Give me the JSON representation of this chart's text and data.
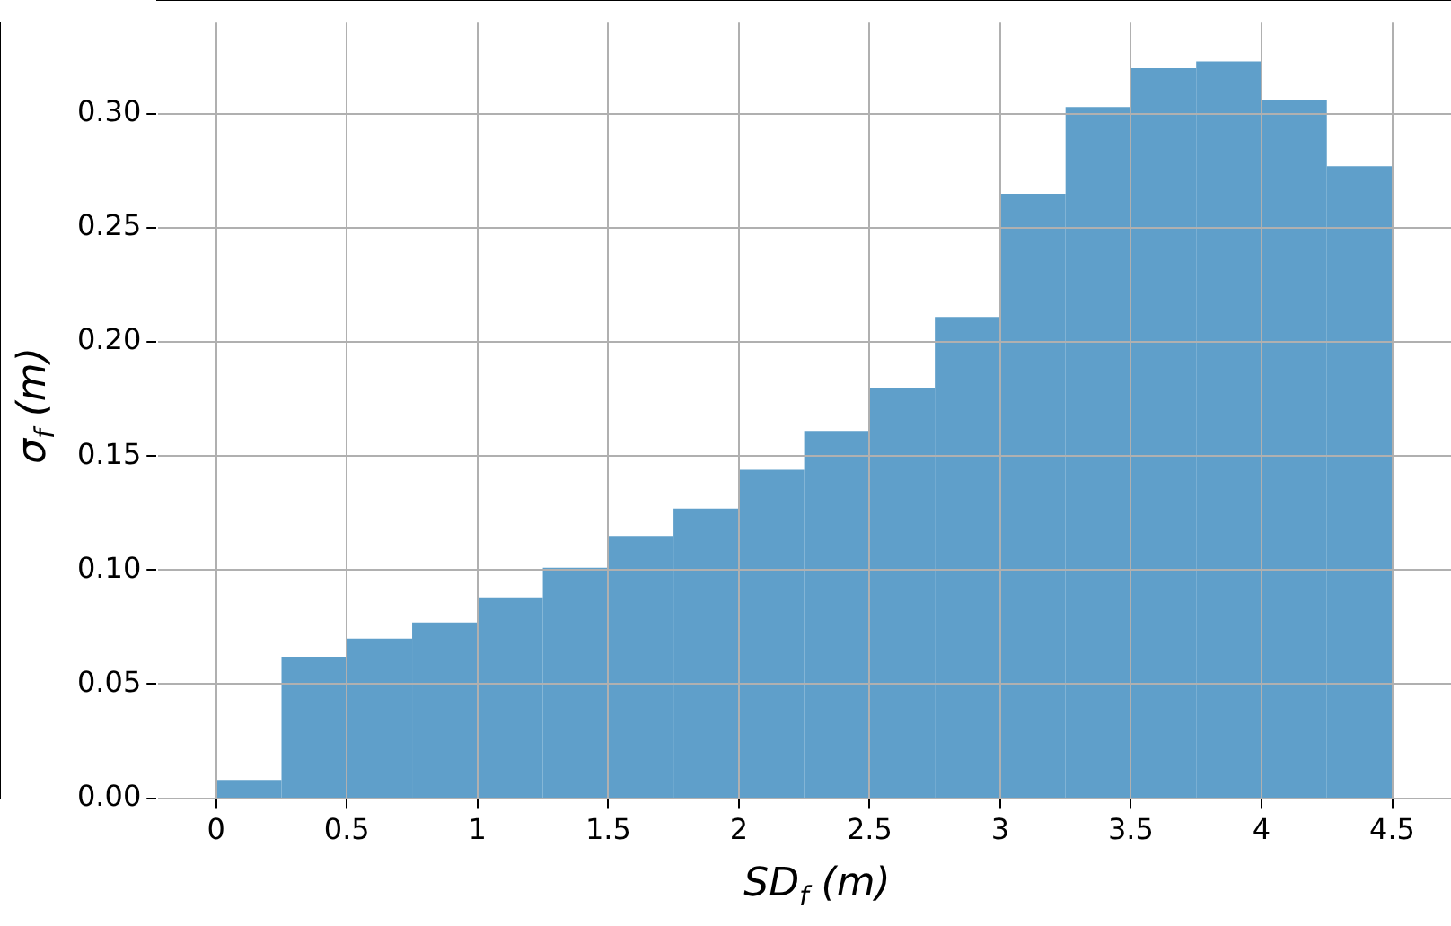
{
  "chart_data": {
    "type": "histogram",
    "xlabel": "SD$_{f}$ (m)",
    "ylabel": "σ$_{f}$ (m)",
    "bins": [
      0,
      0.25,
      0.5,
      0.75,
      1,
      1.25,
      1.5,
      1.75,
      2,
      2.25,
      2.5,
      2.75,
      3,
      3.25,
      3.5,
      3.75,
      4,
      4.25,
      4.5
    ],
    "values": [
      0.008,
      0.062,
      0.07,
      0.077,
      0.088,
      0.101,
      0.115,
      0.127,
      0.144,
      0.161,
      0.18,
      0.211,
      0.265,
      0.303,
      0.32,
      0.323,
      0.306,
      0.277
    ],
    "color": "#5f9fca",
    "xlim": [
      -0.225,
      4.725
    ],
    "ylim": [
      0,
      0.34
    ],
    "xticks": [
      0,
      0.5,
      1,
      1.5,
      2,
      2.5,
      3,
      3.5,
      4,
      4.5
    ],
    "yticks": [
      {
        "value": 0,
        "label": "0.00"
      },
      {
        "value": 0.05,
        "label": "0.05"
      },
      {
        "value": 0.1,
        "label": "0.10"
      },
      {
        "value": 0.15,
        "label": "0.15"
      },
      {
        "value": 0.2,
        "label": "0.20"
      },
      {
        "value": 0.25,
        "label": "0.25"
      },
      {
        "value": 0.3,
        "label": "0.30"
      }
    ],
    "grid": true
  }
}
